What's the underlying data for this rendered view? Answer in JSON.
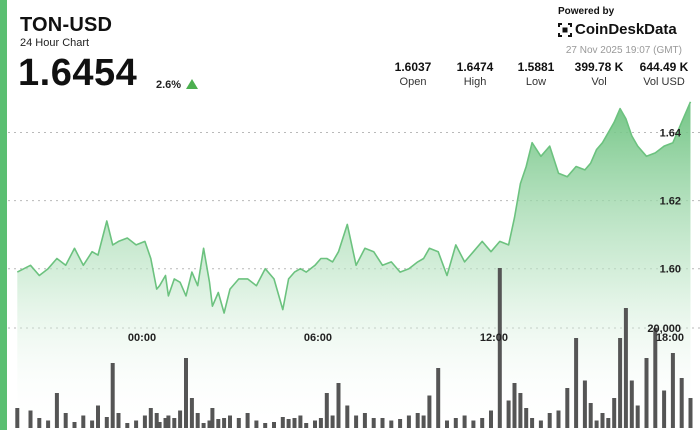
{
  "header": {
    "symbol": "TON-USD",
    "subtitle": "24 Hour Chart",
    "price": "1.6454",
    "change": "2.6%",
    "powered_by": "Powered by",
    "brand": "CoinDeskData",
    "timestamp": "27 Nov 2025 19:07 (GMT)"
  },
  "stats": [
    {
      "value": "1.6037",
      "label": "Open"
    },
    {
      "value": "1.6474",
      "label": "High"
    },
    {
      "value": "1.5881",
      "label": "Low"
    },
    {
      "value": "399.78 K",
      "label": "Vol"
    },
    {
      "value": "644.49 K",
      "label": "Vol USD"
    }
  ],
  "colors": {
    "accent": "#5bbf72",
    "line": "#6cc27f",
    "area_top": "#6cc27f",
    "volume": "#555555",
    "up": "#4caf50"
  },
  "chart_data": {
    "type": "line",
    "x_ticks": [
      "00:00",
      "06:00",
      "12:00",
      "18:00"
    ],
    "y_ticks": [
      1.6,
      1.62,
      1.64
    ],
    "y_tick_labels": [
      "1.60",
      "1.62",
      "1.64"
    ],
    "ylim": [
      1.582,
      1.651
    ],
    "volume_tick_label": "20,000",
    "volume_tick_value": 20000,
    "volume_max": 30000,
    "grid": true,
    "x_hours": [
      -4.25,
      -3.8,
      -3.5,
      -3.2,
      -2.9,
      -2.6,
      -2.3,
      -2.0,
      -1.7,
      -1.5,
      -1.2,
      -1.0,
      -0.8,
      -0.5,
      -0.2,
      0.1,
      0.3,
      0.5,
      0.6,
      0.8,
      0.9,
      1.1,
      1.3,
      1.5,
      1.7,
      1.9,
      2.1,
      2.3,
      2.4,
      2.6,
      2.8,
      3.0,
      3.3,
      3.6,
      3.9,
      4.2,
      4.5,
      4.8,
      5.0,
      5.2,
      5.4,
      5.6,
      5.9,
      6.1,
      6.3,
      6.5,
      6.7,
      7.0,
      7.3,
      7.6,
      7.9,
      8.2,
      8.5,
      8.8,
      9.1,
      9.4,
      9.6,
      9.8,
      10.1,
      10.4,
      10.7,
      11.0,
      11.3,
      11.6,
      11.9,
      12.2,
      12.5,
      12.7,
      12.9,
      13.1,
      13.3,
      13.6,
      13.9,
      14.2,
      14.5,
      14.8,
      15.1,
      15.3,
      15.5,
      15.7,
      15.9,
      16.1,
      16.3,
      16.5,
      16.7,
      16.9,
      17.2,
      17.5,
      17.8,
      18.1,
      18.4,
      18.7
    ],
    "price": [
      1.599,
      1.601,
      1.598,
      1.6,
      1.603,
      1.601,
      1.606,
      1.601,
      1.605,
      1.604,
      1.614,
      1.607,
      1.608,
      1.609,
      1.607,
      1.608,
      1.603,
      1.594,
      1.595,
      1.598,
      1.592,
      1.597,
      1.596,
      1.592,
      1.599,
      1.595,
      1.606,
      1.596,
      1.589,
      1.593,
      1.587,
      1.594,
      1.597,
      1.597,
      1.595,
      1.6,
      1.597,
      1.588,
      1.597,
      1.599,
      1.6,
      1.599,
      1.601,
      1.603,
      1.603,
      1.602,
      1.605,
      1.613,
      1.601,
      1.606,
      1.605,
      1.601,
      1.602,
      1.599,
      1.6,
      1.602,
      1.603,
      1.606,
      1.605,
      1.598,
      1.607,
      1.602,
      1.605,
      1.608,
      1.605,
      1.608,
      1.607,
      1.615,
      1.625,
      1.63,
      1.637,
      1.633,
      1.636,
      1.628,
      1.627,
      1.63,
      1.629,
      1.631,
      1.635,
      1.637,
      1.64,
      1.643,
      1.647,
      1.644,
      1.639,
      1.636,
      1.633,
      1.634,
      1.636,
      1.637,
      1.643,
      1.649
    ],
    "volume": [
      4000,
      3500,
      2000,
      1500,
      7000,
      3000,
      1200,
      2500,
      1500,
      4500,
      2200,
      13000,
      3000,
      1000,
      1500,
      2500,
      4000,
      3000,
      1200,
      2000,
      2500,
      2000,
      3500,
      14000,
      6000,
      3000,
      1000,
      1500,
      4000,
      1800,
      2000,
      2500,
      2000,
      3000,
      1500,
      1000,
      1200,
      2200,
      1800,
      2000,
      2500,
      1000,
      1500,
      2000,
      7000,
      2500,
      9000,
      4500,
      2500,
      3000,
      2000,
      2000,
      1500,
      1800,
      2500,
      3000,
      2500,
      6500,
      12000,
      1500,
      2000,
      2500,
      1500,
      2000,
      3500,
      32000,
      5500,
      9000,
      7000,
      4000,
      2000,
      1500,
      3000,
      3500,
      8000,
      18000,
      9500,
      5000,
      1500,
      3000,
      2000,
      6000,
      18000,
      24000,
      9500,
      4500,
      14000,
      20000,
      7500,
      15000,
      10000,
      6000
    ]
  }
}
